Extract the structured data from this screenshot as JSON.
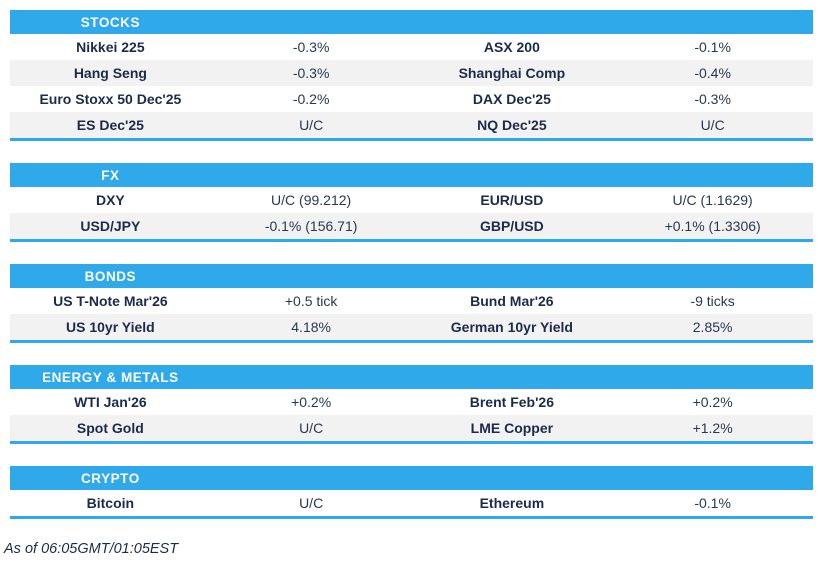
{
  "colors": {
    "accent": "#2FA9E9",
    "row_alt": "#F2F2F2",
    "text_dark": "#1C2B4A",
    "text_value": "#2A3752"
  },
  "sections": [
    {
      "id": "stocks",
      "title": "STOCKS",
      "rows": [
        [
          {
            "name": "Nikkei 225",
            "value": "-0.3%"
          },
          {
            "name": "ASX 200",
            "value": "-0.1%"
          }
        ],
        [
          {
            "name": "Hang Seng",
            "value": "-0.3%"
          },
          {
            "name": "Shanghai Comp",
            "value": "-0.4%"
          }
        ],
        [
          {
            "name": "Euro Stoxx 50 Dec'25",
            "value": "-0.2%"
          },
          {
            "name": "DAX Dec'25",
            "value": "-0.3%"
          }
        ],
        [
          {
            "name": "ES Dec'25",
            "value": "U/C"
          },
          {
            "name": "NQ Dec'25",
            "value": "U/C"
          }
        ]
      ]
    },
    {
      "id": "fx",
      "title": "FX",
      "rows": [
        [
          {
            "name": "DXY",
            "value": "U/C (99.212)"
          },
          {
            "name": "EUR/USD",
            "value": "U/C (1.1629)"
          }
        ],
        [
          {
            "name": "USD/JPY",
            "value": "-0.1% (156.71)"
          },
          {
            "name": "GBP/USD",
            "value": "+0.1% (1.3306)"
          }
        ]
      ]
    },
    {
      "id": "bonds",
      "title": "BONDS",
      "rows": [
        [
          {
            "name": "US T-Note Mar'26",
            "value": "+0.5 tick"
          },
          {
            "name": "Bund Mar'26",
            "value": "-9 ticks"
          }
        ],
        [
          {
            "name": "US 10yr Yield",
            "value": "4.18%"
          },
          {
            "name": "German 10yr Yield",
            "value": "2.85%"
          }
        ]
      ]
    },
    {
      "id": "energy-metals",
      "title": "ENERGY & METALS",
      "rows": [
        [
          {
            "name": "WTI Jan'26",
            "value": "+0.2%"
          },
          {
            "name": "Brent Feb'26",
            "value": "+0.2%"
          }
        ],
        [
          {
            "name": "Spot Gold",
            "value": "U/C"
          },
          {
            "name": "LME Copper",
            "value": "+1.2%"
          }
        ]
      ]
    },
    {
      "id": "crypto",
      "title": "CRYPTO",
      "rows": [
        [
          {
            "name": "Bitcoin",
            "value": "U/C"
          },
          {
            "name": "Ethereum",
            "value": "-0.1%"
          }
        ]
      ]
    }
  ],
  "footer": {
    "as_of": "As of 06:05GMT/01:05EST"
  }
}
